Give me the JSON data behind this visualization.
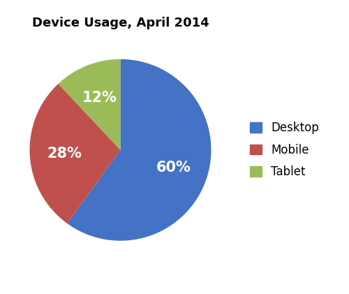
{
  "title": "Device Usage, April 2014",
  "labels": [
    "Desktop",
    "Mobile",
    "Tablet"
  ],
  "values": [
    60,
    28,
    12
  ],
  "colors": [
    "#4472C4",
    "#C0504D",
    "#9BBB59"
  ],
  "pct_labels": [
    "60%",
    "28%",
    "12%"
  ],
  "legend_labels": [
    "Desktop",
    "Mobile",
    "Tablet"
  ],
  "title_fontsize": 13,
  "pct_fontsize": 15,
  "legend_fontsize": 12,
  "background_color": "#ffffff",
  "startangle": 90,
  "text_color": "#ffffff"
}
